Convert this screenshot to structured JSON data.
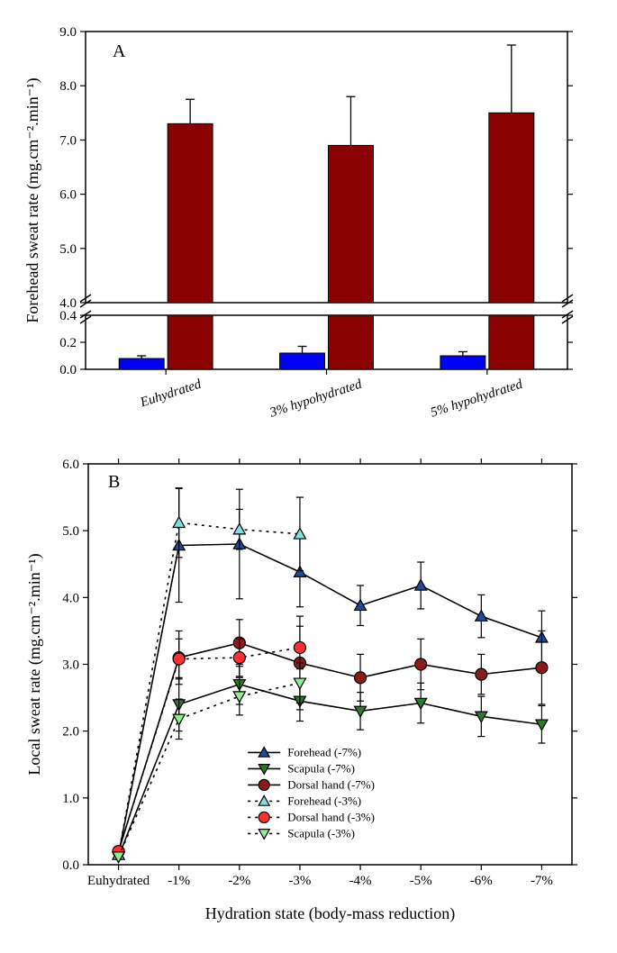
{
  "panelA": {
    "letter": "A",
    "type": "bar",
    "y_label": "Forehead sweat rate (mg.cm⁻².min⁻¹)",
    "categories": [
      "Euhydrated",
      "3% hypohydrated",
      "5% hypohydrated"
    ],
    "series": [
      {
        "name": "blue",
        "color": "#0000ff",
        "values": [
          0.08,
          0.12,
          0.1
        ],
        "errors": [
          0.02,
          0.05,
          0.03
        ]
      },
      {
        "name": "red",
        "color": "#8b0000",
        "values": [
          7.3,
          6.9,
          7.5
        ],
        "errors": [
          0.45,
          0.9,
          1.25
        ]
      }
    ],
    "break_low": 0.4,
    "break_high": 4.0,
    "lower_range": [
      0,
      0.4
    ],
    "lower_ticks": [
      0.0,
      0.2,
      0.4
    ],
    "upper_range": [
      4.0,
      9.0
    ],
    "upper_ticks": [
      4.0,
      5.0,
      6.0,
      7.0,
      8.0,
      9.0
    ],
    "bar_width": 0.5,
    "axis_color": "#000000",
    "background": "#ffffff"
  },
  "panelB": {
    "letter": "B",
    "type": "line",
    "y_label": "Local sweat rate (mg.cm⁻².min⁻¹)",
    "x_label": "Hydration state (body-mass reduction)",
    "x_categories": [
      "Euhydrated",
      "-1%",
      "-2%",
      "-3%",
      "-4%",
      "-5%",
      "-6%",
      "-7%"
    ],
    "ylim": [
      0,
      6.0
    ],
    "yticks": [
      0.0,
      1.0,
      2.0,
      3.0,
      4.0,
      5.0,
      6.0
    ],
    "series": [
      {
        "label": "Forehead (-7%)",
        "marker": "triangle-up",
        "marker_fill": "#1e4b9a",
        "marker_stroke": "#000000",
        "line_color": "#000000",
        "line_dash": "solid",
        "values": [
          0.15,
          4.78,
          4.8,
          4.38,
          3.88,
          4.18,
          3.72,
          3.4
        ],
        "errors": [
          0.05,
          0.85,
          0.82,
          0.52,
          0.3,
          0.35,
          0.32,
          0.4
        ]
      },
      {
        "label": "Scapula (-7%)",
        "marker": "triangle-down",
        "marker_fill": "#2a7a2a",
        "marker_stroke": "#000000",
        "line_color": "#000000",
        "line_dash": "solid",
        "values": [
          0.12,
          2.4,
          2.7,
          2.45,
          2.3,
          2.42,
          2.22,
          2.1
        ],
        "errors": [
          0.04,
          0.4,
          0.3,
          0.3,
          0.28,
          0.3,
          0.3,
          0.28
        ]
      },
      {
        "label": "Dorsal hand (-7%)",
        "marker": "circle",
        "marker_fill": "#8b1a1a",
        "marker_stroke": "#000000",
        "line_color": "#000000",
        "line_dash": "solid",
        "values": [
          0.2,
          3.1,
          3.32,
          3.02,
          2.8,
          3.0,
          2.85,
          2.95
        ],
        "errors": [
          0.05,
          0.4,
          0.35,
          0.7,
          0.35,
          0.38,
          0.3,
          0.55
        ]
      },
      {
        "label": "Forehead (-3%)",
        "marker": "triangle-up",
        "marker_fill": "#7ee0e0",
        "marker_stroke": "#000000",
        "line_color": "#000000",
        "line_dash": "dotted",
        "values": [
          0.15,
          5.12,
          5.02,
          4.95
        ],
        "errors": [
          0.05,
          0.52,
          0.3,
          0.55
        ]
      },
      {
        "label": "Dorsal hand (-3%)",
        "marker": "circle",
        "marker_fill": "#ff3030",
        "marker_stroke": "#000000",
        "line_color": "#000000",
        "line_dash": "dotted",
        "values": [
          0.2,
          3.08,
          3.1,
          3.25
        ],
        "errors": [
          0.05,
          0.3,
          0.28,
          0.32
        ]
      },
      {
        "label": "Scapula (-3%)",
        "marker": "triangle-down",
        "marker_fill": "#90ee90",
        "marker_stroke": "#000000",
        "line_color": "#000000",
        "line_dash": "dotted",
        "values": [
          0.12,
          2.18,
          2.52,
          2.72
        ],
        "errors": [
          0.04,
          0.3,
          0.28,
          0.3
        ]
      }
    ],
    "axis_color": "#000000",
    "background": "#ffffff"
  }
}
